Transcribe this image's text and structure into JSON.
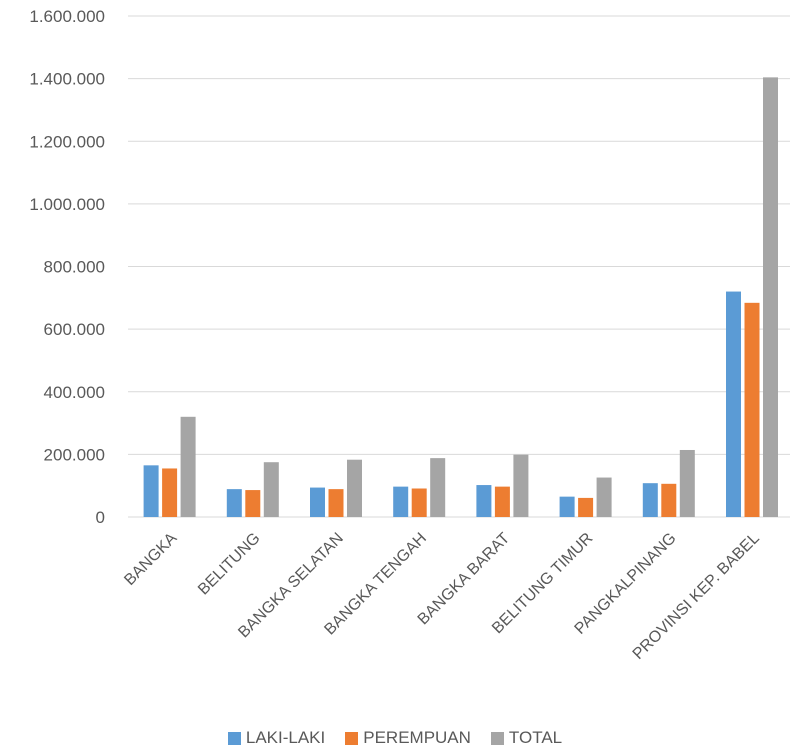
{
  "chart_data": {
    "type": "bar",
    "categories": [
      "BANGKA",
      "BELITUNG",
      "BANGKA SELATAN",
      "BANGKA TENGAH",
      "BANGKA BARAT",
      "BELITUNG TIMUR",
      "PANGKALPINANG",
      "PROVINSI KEP. BABEL"
    ],
    "series": [
      {
        "name": "LAKI-LAKI",
        "color": "#5B9BD5",
        "values": [
          165000,
          89000,
          94000,
          97000,
          102000,
          65000,
          108000,
          720000
        ]
      },
      {
        "name": "PEREMPUAN",
        "color": "#ED7D31",
        "values": [
          155000,
          86000,
          89000,
          91000,
          97000,
          61000,
          106000,
          684000
        ]
      },
      {
        "name": "TOTAL",
        "color": "#A5A5A5",
        "values": [
          320000,
          175000,
          183000,
          188000,
          199000,
          126000,
          214000,
          1404000
        ]
      }
    ],
    "yticks": [
      "0",
      "200.000",
      "400.000",
      "600.000",
      "800.000",
      "1.000.000",
      "1.200.000",
      "1.400.000",
      "1.600.000"
    ],
    "ylim": [
      0,
      1600000
    ],
    "grid": true,
    "legend_position": "bottom",
    "title": "",
    "xlabel": "",
    "ylabel": ""
  }
}
